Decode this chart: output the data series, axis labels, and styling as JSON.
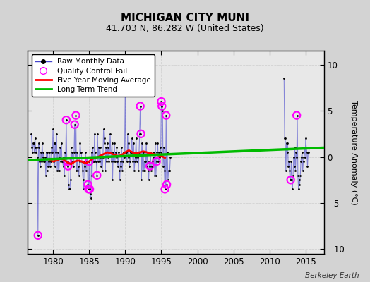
{
  "title": "MICHIGAN CITY MUNI",
  "subtitle": "41.703 N, 86.282 W (United States)",
  "ylabel": "Temperature Anomaly (°C)",
  "watermark": "Berkeley Earth",
  "xlim": [
    1976.5,
    2017.5
  ],
  "ylim": [
    -10.5,
    11.5
  ],
  "yticks": [
    -10,
    -5,
    0,
    5,
    10
  ],
  "xticks": [
    1980,
    1985,
    1990,
    1995,
    2000,
    2005,
    2010,
    2015
  ],
  "background_color": "#d3d3d3",
  "plot_bg_color": "#e8e8e8",
  "raw_line_color": "#4444cc",
  "raw_line_alpha": 0.6,
  "raw_dot_color": "#000000",
  "qc_fail_color": "#ff00ff",
  "moving_avg_color": "#ff0000",
  "trend_color": "#00bb00",
  "raw_data_x": [
    1977.0,
    1977.083,
    1977.167,
    1977.25,
    1977.333,
    1977.417,
    1977.5,
    1977.583,
    1977.667,
    1977.75,
    1977.833,
    1977.917,
    1978.0,
    1978.083,
    1978.167,
    1978.25,
    1978.333,
    1978.417,
    1978.5,
    1978.583,
    1978.667,
    1978.75,
    1978.833,
    1978.917,
    1979.0,
    1979.083,
    1979.167,
    1979.25,
    1979.333,
    1979.417,
    1979.5,
    1979.583,
    1979.667,
    1979.75,
    1979.833,
    1979.917,
    1980.0,
    1980.083,
    1980.167,
    1980.25,
    1980.333,
    1980.417,
    1980.5,
    1980.583,
    1980.667,
    1980.75,
    1980.833,
    1980.917,
    1981.0,
    1981.083,
    1981.167,
    1981.25,
    1981.333,
    1981.417,
    1981.5,
    1981.583,
    1981.667,
    1981.75,
    1981.833,
    1981.917,
    1982.0,
    1982.083,
    1982.167,
    1982.25,
    1982.333,
    1982.417,
    1982.5,
    1982.583,
    1982.667,
    1982.75,
    1982.833,
    1982.917,
    1983.0,
    1983.083,
    1983.167,
    1983.25,
    1983.333,
    1983.417,
    1983.5,
    1983.583,
    1983.667,
    1983.75,
    1983.833,
    1983.917,
    1984.0,
    1984.083,
    1984.167,
    1984.25,
    1984.333,
    1984.417,
    1984.5,
    1984.583,
    1984.667,
    1984.75,
    1984.833,
    1984.917,
    1985.0,
    1985.083,
    1985.167,
    1985.25,
    1985.333,
    1985.417,
    1985.5,
    1985.583,
    1985.667,
    1985.75,
    1985.833,
    1985.917,
    1986.0,
    1986.083,
    1986.167,
    1986.25,
    1986.333,
    1986.417,
    1986.5,
    1986.583,
    1986.667,
    1986.75,
    1986.833,
    1986.917,
    1987.0,
    1987.083,
    1987.167,
    1987.25,
    1987.333,
    1987.417,
    1987.5,
    1987.583,
    1987.667,
    1987.75,
    1987.833,
    1987.917,
    1988.0,
    1988.083,
    1988.167,
    1988.25,
    1988.333,
    1988.417,
    1988.5,
    1988.583,
    1988.667,
    1988.75,
    1988.833,
    1988.917,
    1989.0,
    1989.083,
    1989.167,
    1989.25,
    1989.333,
    1989.417,
    1989.5,
    1989.583,
    1989.667,
    1989.75,
    1989.833,
    1989.917,
    1990.0,
    1990.083,
    1990.167,
    1990.25,
    1990.333,
    1990.417,
    1990.5,
    1990.583,
    1990.667,
    1990.75,
    1990.833,
    1990.917,
    1991.0,
    1991.083,
    1991.167,
    1991.25,
    1991.333,
    1991.417,
    1991.5,
    1991.583,
    1991.667,
    1991.75,
    1991.833,
    1991.917,
    1992.0,
    1992.083,
    1992.167,
    1992.25,
    1992.333,
    1992.417,
    1992.5,
    1992.583,
    1992.667,
    1992.75,
    1992.833,
    1992.917,
    1993.0,
    1993.083,
    1993.167,
    1993.25,
    1993.333,
    1993.417,
    1993.5,
    1993.583,
    1993.667,
    1993.75,
    1993.833,
    1993.917,
    1994.0,
    1994.083,
    1994.167,
    1994.25,
    1994.333,
    1994.417,
    1994.5,
    1994.583,
    1994.667,
    1994.75,
    1994.833,
    1994.917,
    1995.0,
    1995.083,
    1995.167,
    1995.25,
    1995.333,
    1995.417,
    1995.5,
    1995.583,
    1995.667,
    1995.75,
    1995.833,
    1995.917,
    1996.0,
    1996.083,
    1996.167,
    1996.25,
    2012.0,
    2012.083,
    2012.167,
    2012.25,
    2012.333,
    2012.417,
    2012.5,
    2012.583,
    2012.667,
    2012.75,
    2012.833,
    2012.917,
    2013.0,
    2013.083,
    2013.167,
    2013.25,
    2013.333,
    2013.417,
    2013.5,
    2013.583,
    2013.667,
    2013.75,
    2013.833,
    2013.917,
    2014.0,
    2014.083,
    2014.167,
    2014.25,
    2014.333,
    2014.417,
    2014.5,
    2014.583,
    2014.667,
    2014.75,
    2014.833,
    2014.917,
    2015.0,
    2015.083,
    2015.167,
    2015.25,
    2015.333,
    2015.417,
    2015.5
  ],
  "raw_data_y": [
    2.5,
    1.0,
    0.5,
    1.5,
    1.5,
    0.5,
    2.0,
    1.0,
    0.5,
    1.0,
    0.0,
    -8.5,
    1.5,
    1.0,
    -0.5,
    -1.0,
    0.5,
    -0.5,
    1.5,
    0.0,
    0.5,
    -0.5,
    -0.5,
    0.0,
    -2.0,
    0.5,
    -1.5,
    0.5,
    -1.0,
    -0.5,
    0.5,
    -1.0,
    -0.5,
    0.5,
    1.0,
    0.5,
    3.0,
    -0.5,
    1.5,
    -1.0,
    1.5,
    0.5,
    2.5,
    -1.5,
    0.5,
    -1.5,
    -1.5,
    0.0,
    1.0,
    -0.5,
    1.5,
    -0.5,
    -0.5,
    -1.0,
    0.0,
    -2.0,
    0.5,
    0.0,
    4.0,
    -0.5,
    -0.5,
    -1.0,
    -3.0,
    -3.5,
    -3.5,
    -2.5,
    1.0,
    -0.5,
    0.5,
    0.0,
    -1.0,
    0.5,
    3.5,
    0.0,
    4.5,
    -1.5,
    0.5,
    -1.5,
    -1.0,
    -2.0,
    -0.5,
    1.5,
    0.5,
    0.5,
    -0.5,
    -1.5,
    -2.5,
    -3.5,
    -0.5,
    -1.0,
    0.5,
    -1.5,
    -0.5,
    0.0,
    -3.0,
    -3.5,
    -0.5,
    -3.5,
    -4.0,
    -4.5,
    0.5,
    -2.0,
    1.0,
    -0.5,
    -0.5,
    2.5,
    0.5,
    -0.5,
    -0.5,
    -2.0,
    2.5,
    -0.5,
    1.0,
    -0.5,
    1.0,
    0.0,
    -1.0,
    0.0,
    -1.5,
    0.0,
    3.0,
    1.5,
    2.0,
    -1.5,
    1.0,
    -0.5,
    1.5,
    0.0,
    1.0,
    -0.5,
    0.5,
    2.5,
    0.5,
    -0.5,
    1.5,
    -2.5,
    0.5,
    -0.5,
    1.5,
    -0.5,
    0.5,
    0.0,
    1.0,
    -0.5,
    -1.0,
    0.5,
    -1.5,
    -2.5,
    -0.5,
    -1.0,
    1.0,
    -1.5,
    -0.5,
    0.5,
    0.0,
    0.5,
    7.5,
    0.5,
    0.5,
    -0.5,
    2.5,
    0.0,
    1.5,
    -1.0,
    -0.5,
    0.5,
    0.5,
    2.0,
    0.5,
    -0.5,
    1.5,
    -1.5,
    -0.5,
    0.0,
    2.0,
    -0.5,
    0.5,
    0.0,
    -1.5,
    0.5,
    2.5,
    5.5,
    2.5,
    -2.5,
    1.5,
    -1.5,
    0.5,
    -1.5,
    -0.5,
    -1.5,
    -0.5,
    1.5,
    -1.0,
    0.5,
    -1.5,
    -2.5,
    -0.5,
    -1.0,
    0.5,
    -1.5,
    -1.0,
    -0.5,
    0.0,
    0.5,
    0.5,
    -2.0,
    1.5,
    -2.0,
    -0.5,
    0.5,
    1.5,
    -0.5,
    0.5,
    0.0,
    1.0,
    0.5,
    6.0,
    5.5,
    5.0,
    -1.0,
    1.0,
    -1.5,
    -3.5,
    -3.5,
    4.5,
    -3.0,
    0.5,
    -2.5,
    -1.5,
    -1.5,
    -1.5,
    0.0,
    8.5,
    2.0,
    2.0,
    -1.5,
    1.5,
    0.5,
    1.5,
    -1.0,
    -0.5,
    -1.5,
    -2.5,
    -2.5,
    -0.5,
    -2.5,
    -3.5,
    -2.0,
    0.0,
    -1.0,
    1.0,
    -1.5,
    0.5,
    0.0,
    4.5,
    -2.0,
    -3.5,
    -2.5,
    -3.0,
    -2.0,
    -0.5,
    0.0,
    0.5,
    -1.5,
    -0.5,
    0.0,
    1.0,
    0.0,
    2.0,
    1.0,
    0.5,
    -1.0,
    0.5,
    0.5,
    1.0
  ],
  "qc_fail_x": [
    1977.917,
    1981.833,
    1982.0,
    1982.083,
    1983.0,
    1983.167,
    1984.833,
    1984.917,
    1985.0,
    1985.083,
    1986.083,
    1992.083,
    1992.167,
    1993.417,
    1994.333,
    1995.0,
    1995.083,
    1995.5,
    1995.667,
    1995.75,
    2012.917,
    2013.75
  ],
  "qc_fail_y": [
    -8.5,
    4.0,
    -0.5,
    -1.0,
    3.5,
    4.5,
    -3.0,
    -3.5,
    -0.5,
    -3.5,
    -2.0,
    5.5,
    2.5,
    -1.0,
    -0.5,
    6.0,
    5.5,
    -3.5,
    4.5,
    -3.0,
    -2.5,
    4.5
  ],
  "moving_avg_x": [
    1979.5,
    1980.0,
    1980.5,
    1981.0,
    1981.5,
    1982.0,
    1982.5,
    1983.0,
    1983.5,
    1984.0,
    1984.5,
    1985.0,
    1985.5,
    1986.0,
    1986.5,
    1987.0,
    1987.5,
    1988.0,
    1988.5,
    1989.0,
    1989.5,
    1990.0,
    1990.5,
    1991.0,
    1991.5,
    1992.0,
    1992.5,
    1993.0,
    1993.5,
    1994.0,
    1994.5,
    1995.0,
    1995.5
  ],
  "moving_avg_y": [
    -0.3,
    -0.5,
    -0.4,
    -0.2,
    -0.3,
    -0.6,
    -0.8,
    -0.5,
    -0.4,
    -0.5,
    -0.7,
    -0.5,
    -0.2,
    -0.1,
    0.1,
    0.3,
    0.5,
    0.4,
    0.2,
    0.1,
    0.2,
    0.5,
    0.7,
    0.5,
    0.4,
    0.5,
    0.6,
    0.5,
    0.4,
    0.3,
    0.2,
    0.1,
    -0.1
  ],
  "trend_x": [
    1976.5,
    2017.5
  ],
  "trend_y": [
    -0.35,
    1.0
  ]
}
